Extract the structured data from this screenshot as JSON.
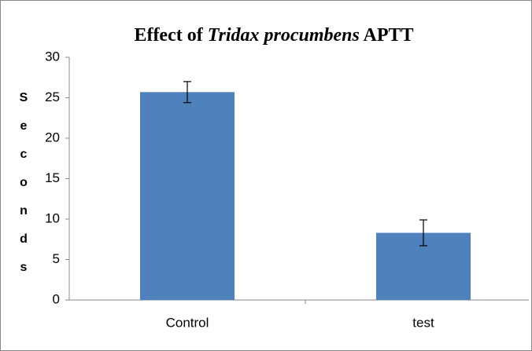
{
  "chart_data": {
    "type": "bar",
    "title": [
      "Effect of",
      "Tridax procumbens",
      "APTT"
    ],
    "y_label": "Seconds",
    "categories": [
      "Control",
      "test"
    ],
    "values": [
      25.7,
      8.3
    ],
    "errors": [
      1.3,
      1.6
    ],
    "color": "#4f81bd",
    "ylim": [
      0,
      30
    ],
    "yticks": [
      0,
      5,
      10,
      15,
      20,
      25,
      30
    ],
    "grid": false
  }
}
